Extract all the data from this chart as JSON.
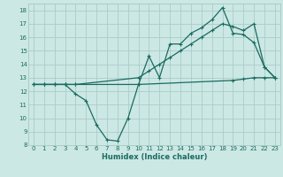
{
  "background_color": "#cce8e4",
  "grid_color": "#aaccca",
  "line_color": "#1a6b60",
  "xlabel": "Humidex (Indice chaleur)",
  "xlim": [
    -0.5,
    23.5
  ],
  "ylim": [
    8,
    18.5
  ],
  "xticks": [
    0,
    1,
    2,
    3,
    4,
    5,
    6,
    7,
    8,
    9,
    10,
    11,
    12,
    13,
    14,
    15,
    16,
    17,
    18,
    19,
    20,
    21,
    22,
    23
  ],
  "yticks": [
    8,
    9,
    10,
    11,
    12,
    13,
    14,
    15,
    16,
    17,
    18
  ],
  "line1_x": [
    0,
    1,
    2,
    3,
    4,
    10,
    19,
    20,
    21,
    22,
    23
  ],
  "line1_y": [
    12.5,
    12.5,
    12.5,
    12.5,
    12.5,
    12.5,
    12.8,
    12.9,
    13.0,
    13.0,
    13.0
  ],
  "line2_x": [
    0,
    1,
    2,
    3,
    4,
    5,
    6,
    7,
    8,
    9,
    10,
    11,
    12,
    13,
    14,
    15,
    16,
    17,
    18,
    19,
    20,
    21,
    22,
    23
  ],
  "line2_y": [
    12.5,
    12.5,
    12.5,
    12.5,
    11.8,
    11.3,
    9.5,
    8.4,
    8.3,
    10.0,
    12.5,
    14.6,
    13.0,
    15.5,
    15.5,
    16.3,
    16.7,
    17.3,
    18.2,
    16.3,
    16.2,
    15.6,
    13.8,
    13.0
  ],
  "line3_x": [
    0,
    1,
    2,
    3,
    4,
    10,
    11,
    12,
    13,
    14,
    15,
    16,
    17,
    18,
    19,
    20,
    21,
    22,
    23
  ],
  "line3_y": [
    12.5,
    12.5,
    12.5,
    12.5,
    12.5,
    13.0,
    13.5,
    14.0,
    14.5,
    15.0,
    15.5,
    16.0,
    16.5,
    17.0,
    16.8,
    16.5,
    17.0,
    13.8,
    13.0
  ]
}
